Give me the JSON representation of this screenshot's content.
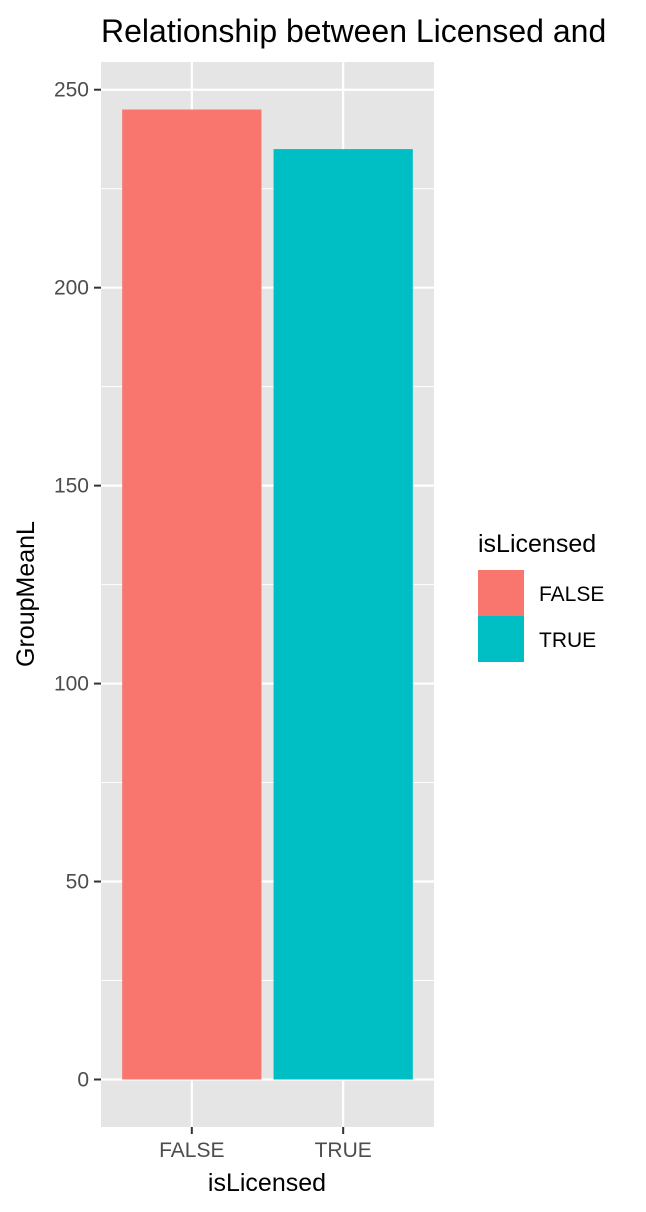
{
  "chart_data": {
    "type": "bar",
    "title": "Relationship between Licensed and",
    "xlabel": "isLicensed",
    "ylabel": "GroupMeanL",
    "categories": [
      "FALSE",
      "TRUE"
    ],
    "values": [
      245,
      235
    ],
    "ylim": [
      -12,
      257
    ],
    "yticks": [
      0,
      50,
      100,
      150,
      200,
      250
    ],
    "ytick_labels": [
      "0",
      "50",
      "100",
      "150",
      "200",
      "250"
    ],
    "grid": true,
    "panel_background": "#e5e5e5",
    "colors": [
      "#f8766d",
      "#00bfc4"
    ],
    "legend": {
      "title": "isLicensed",
      "placement": "right",
      "entries": [
        "FALSE",
        "TRUE"
      ]
    }
  }
}
